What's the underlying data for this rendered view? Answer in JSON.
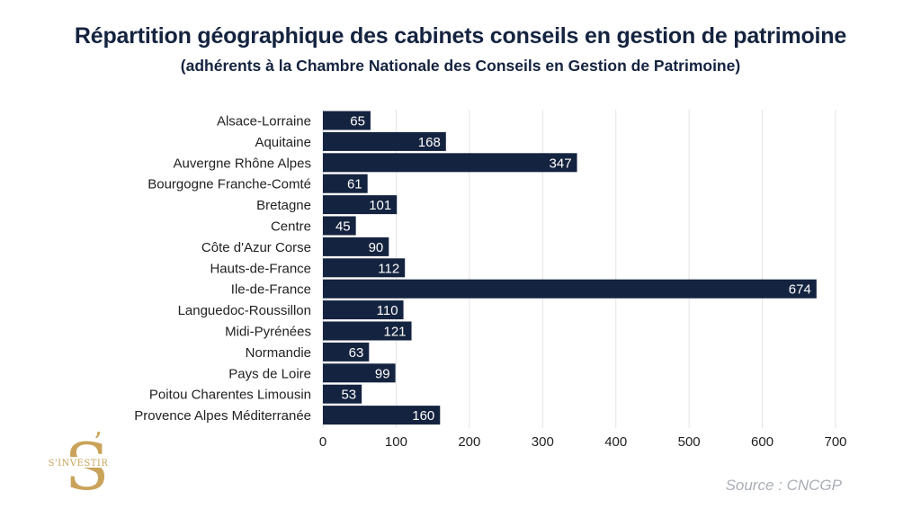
{
  "header": {
    "title": "Répartition géographique des cabinets conseils en gestion de patrimoine",
    "subtitle": "(adhérents à la Chambre Nationale des Conseils en Gestion de Patrimoine)"
  },
  "footer": {
    "source": "Source : CNCGP"
  },
  "logo": {
    "text": "S'INVESTIR",
    "color": "#c9a35a",
    "icon": "s-investir-logo-icon"
  },
  "chart_data": {
    "type": "bar",
    "orientation": "horizontal",
    "categories": [
      "Alsace-Lorraine",
      "Aquitaine",
      "Auvergne Rhône Alpes",
      "Bourgogne Franche-Comté",
      "Bretagne",
      "Centre",
      "Côte d'Azur Corse",
      "Hauts-de-France",
      "Ile-de-France",
      "Languedoc-Roussillon",
      "Midi-Pyrénées",
      "Normandie",
      "Pays de Loire",
      "Poitou Charentes Limousin",
      "Provence Alpes Méditerranée"
    ],
    "values": [
      65,
      168,
      347,
      61,
      101,
      45,
      90,
      112,
      674,
      110,
      121,
      63,
      99,
      53,
      160
    ],
    "xlim": [
      0,
      700
    ],
    "xticks": [
      0,
      100,
      200,
      300,
      400,
      500,
      600,
      700
    ],
    "grid": "vertical",
    "data_labels": true,
    "bar_color": "#14233f",
    "label_color": "#ffffff",
    "text_color": "#222222",
    "grid_color": "#e2e4e8"
  }
}
